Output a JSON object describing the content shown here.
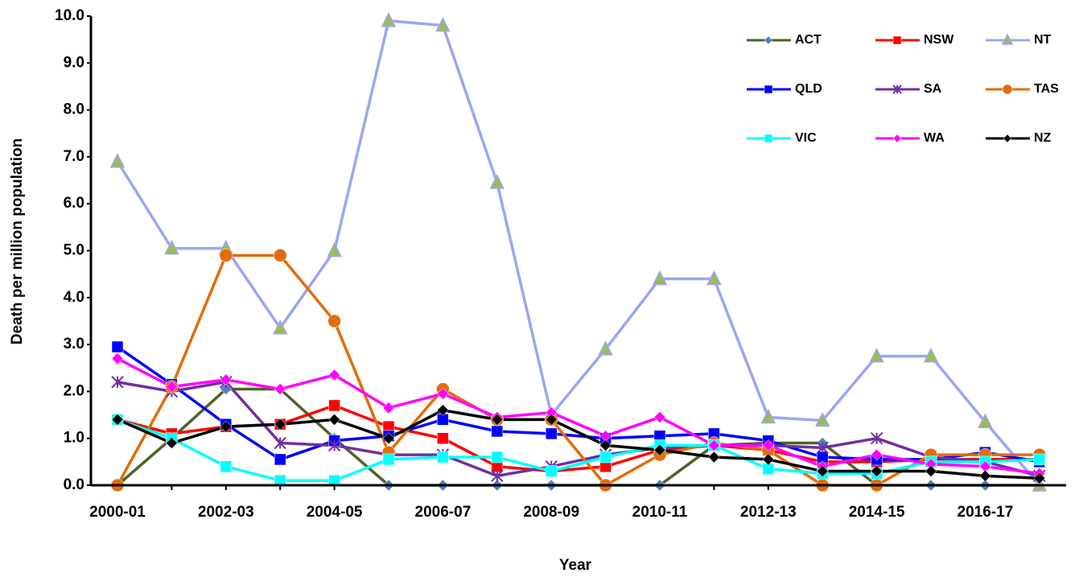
{
  "chart_data": {
    "type": "line",
    "x_label": "Year",
    "y_label": "Death per million population",
    "categories": [
      "2000-01",
      null,
      "2002-03",
      null,
      "2004-05",
      null,
      "2006-07",
      null,
      "2008-09",
      null,
      "2010-11",
      null,
      "2012-13",
      null,
      "2014-15",
      null,
      "2016-17",
      null
    ],
    "ylim": [
      0,
      10
    ],
    "yticks": [
      {
        "value": 0,
        "label": "0.0"
      },
      {
        "value": 1,
        "label": "1.0"
      },
      {
        "value": 2,
        "label": "2.0"
      },
      {
        "value": 3,
        "label": "3.0"
      },
      {
        "value": 4,
        "label": "4.0"
      },
      {
        "value": 5,
        "label": "5.0"
      },
      {
        "value": 6,
        "label": "6.0"
      },
      {
        "value": 7,
        "label": "7.0"
      },
      {
        "value": 8,
        "label": "8.0"
      },
      {
        "value": 9,
        "label": "9.0"
      },
      {
        "value": 10,
        "label": "10.0"
      }
    ],
    "grid": false,
    "legend": "top-right",
    "series": [
      {
        "name": "ACT",
        "color": "#4f6228",
        "marker": "diamond",
        "marker_color": "#4f81bd",
        "values": [
          0,
          1.0,
          2.05,
          2.05,
          1.0,
          0,
          0,
          0,
          0,
          0,
          0,
          0.85,
          0.9,
          0.9,
          0,
          0,
          0,
          0
        ]
      },
      {
        "name": "NSW",
        "color": "#ff0000",
        "marker": "square",
        "values": [
          1.4,
          1.1,
          1.25,
          1.3,
          1.7,
          1.25,
          1.0,
          0.4,
          0.3,
          0.4,
          0.75,
          0.85,
          0.75,
          0.5,
          0.5,
          0.55,
          0.55,
          0.55
        ]
      },
      {
        "name": "NT",
        "color": "#9ca5f0",
        "marker": "triangle",
        "marker_color": "#9bbb59",
        "values": [
          6.9,
          5.05,
          5.05,
          3.35,
          5.0,
          9.9,
          9.8,
          6.45,
          1.5,
          2.9,
          4.4,
          4.4,
          1.45,
          1.38,
          2.75,
          2.75,
          1.35,
          0
        ]
      },
      {
        "name": "QLD",
        "color": "#0000ff",
        "marker": "square",
        "values": [
          2.95,
          2.15,
          1.3,
          0.55,
          0.95,
          1.05,
          1.4,
          1.15,
          1.1,
          1.0,
          1.05,
          1.1,
          0.95,
          0.6,
          0.55,
          0.55,
          0.7,
          0.5
        ]
      },
      {
        "name": "SA",
        "color": "#7030a0",
        "marker": "star",
        "values": [
          2.2,
          2.0,
          2.2,
          0.9,
          0.85,
          0.65,
          0.65,
          0.2,
          0.4,
          0.65,
          0.8,
          0.85,
          0.85,
          0.8,
          1.0,
          0.6,
          0.5,
          0.2
        ]
      },
      {
        "name": "TAS",
        "color": "#e36c09",
        "marker": "circle",
        "values": [
          0,
          2.1,
          4.9,
          4.9,
          3.5,
          0.7,
          2.05,
          1.4,
          1.4,
          0,
          0.65,
          0.9,
          0.75,
          0,
          0,
          0.65,
          0.65,
          0.65
        ]
      },
      {
        "name": "VIC",
        "color": "#00ffff",
        "marker": "square",
        "values": [
          1.4,
          1.0,
          0.4,
          0.1,
          0.1,
          0.55,
          0.6,
          0.6,
          0.3,
          0.6,
          0.85,
          0.85,
          0.35,
          0.25,
          0.25,
          0.5,
          0.5,
          0.55
        ]
      },
      {
        "name": "WA",
        "color": "#ff00ff",
        "marker": "diamond",
        "values": [
          2.7,
          2.1,
          2.25,
          2.05,
          2.35,
          1.65,
          1.95,
          1.45,
          1.55,
          1.05,
          1.45,
          0.85,
          0.85,
          0.4,
          0.65,
          0.45,
          0.4,
          0.25
        ]
      },
      {
        "name": "NZ",
        "color": "#000000",
        "marker": "diamond",
        "values": [
          1.4,
          0.9,
          1.25,
          1.3,
          1.4,
          1.0,
          1.6,
          1.4,
          1.4,
          0.85,
          0.75,
          0.6,
          0.55,
          0.3,
          0.3,
          0.3,
          0.2,
          0.15
        ]
      }
    ]
  }
}
